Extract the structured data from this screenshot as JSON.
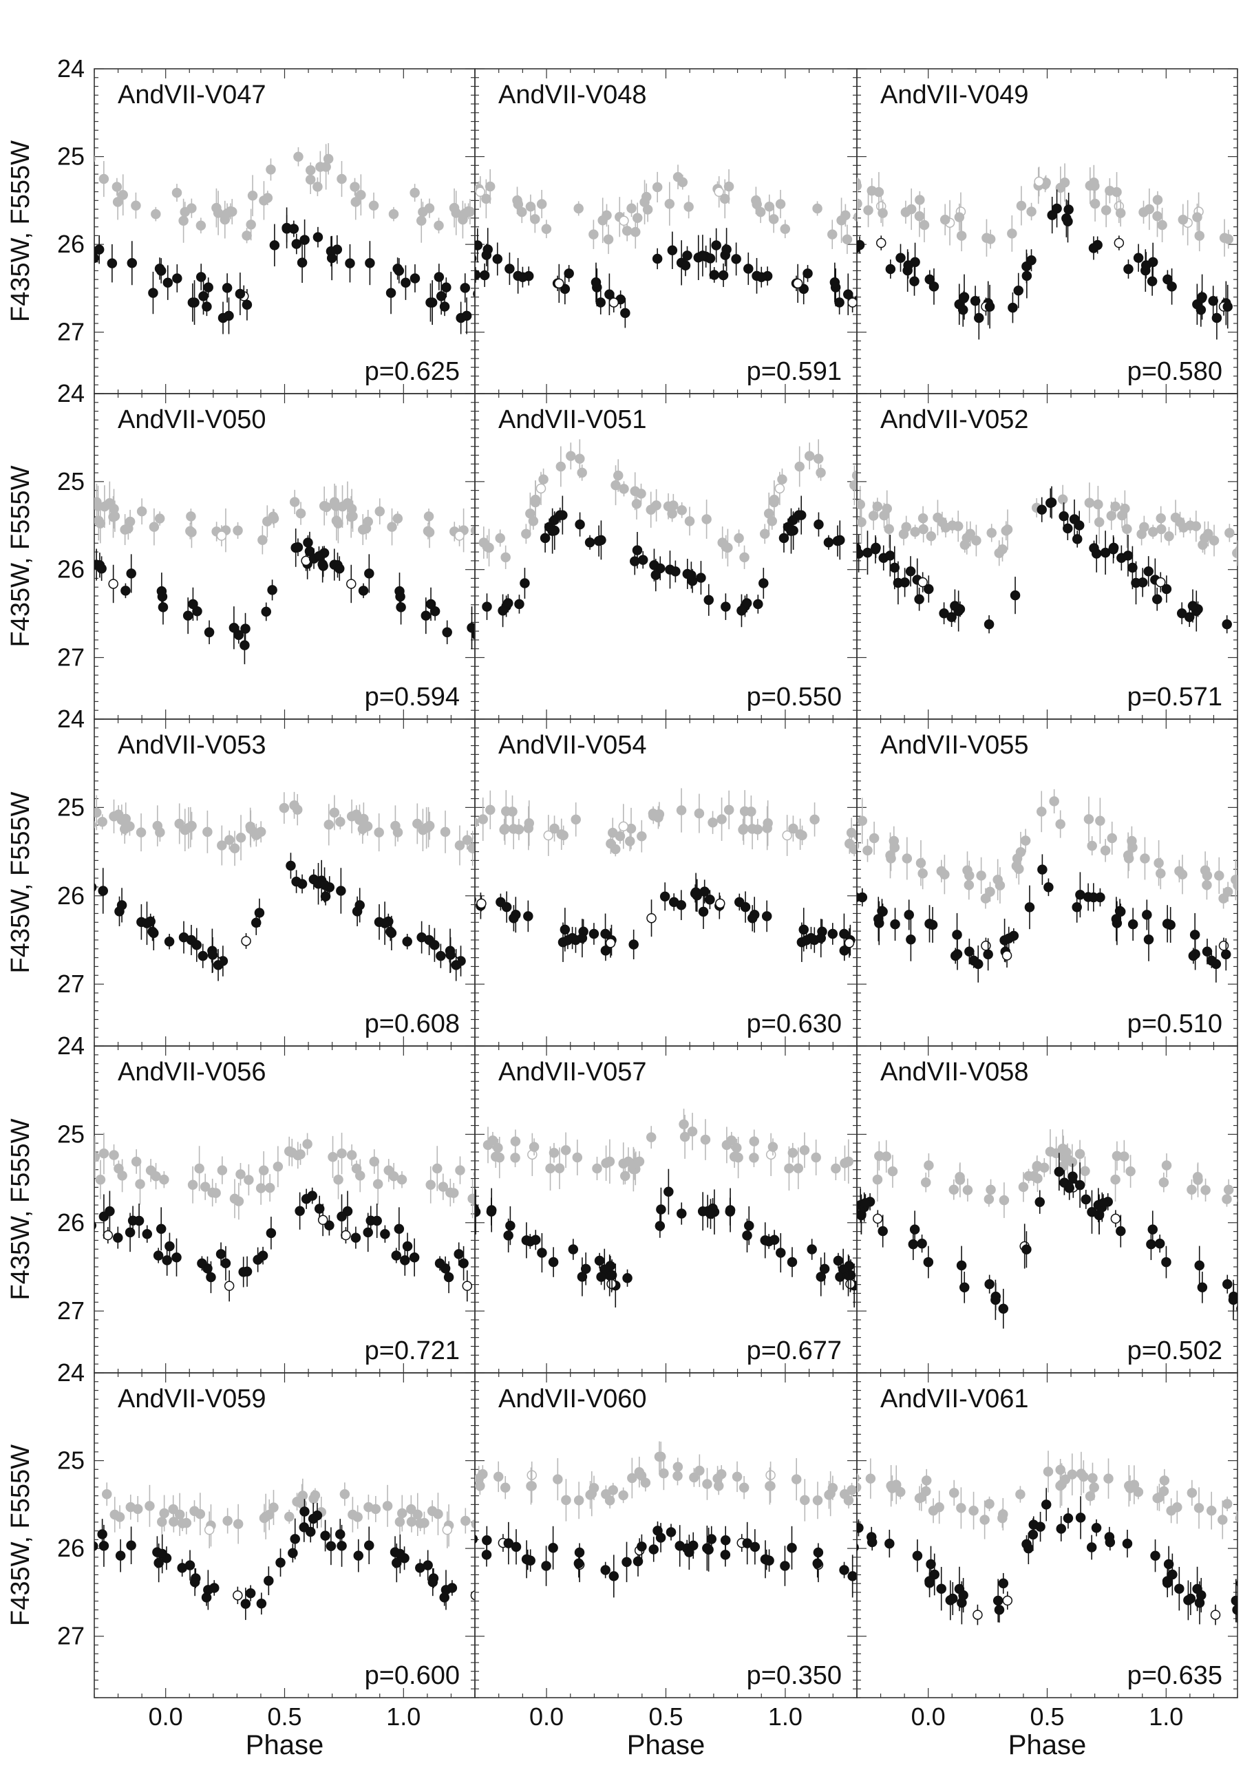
{
  "figure": {
    "ylabel": "F435W, F555W",
    "xlabel": "Phase",
    "xlim": [
      -0.3,
      1.3
    ],
    "ylim": [
      27.7,
      24.0
    ],
    "yticks": [
      "24",
      "25",
      "26",
      "27"
    ],
    "xticks": [
      "0.0",
      "0.5",
      "1.0"
    ],
    "colors": {
      "primary": "#111111",
      "secondary": "#b8b8b8",
      "axes": "#333333"
    }
  },
  "chart_data": [
    {
      "type": "scatter",
      "title": "AndVII-V047",
      "period": "p=0.625",
      "mean_primary": 26.35,
      "amp_primary": 0.75,
      "mean_secondary": 25.42,
      "amp_secondary": 0.75,
      "phase_max": 0.5,
      "phase_shift_secondary": 0.1,
      "scatter": 0.2
    },
    {
      "type": "scatter",
      "title": "AndVII-V048",
      "period": "p=0.591",
      "mean_primary": 26.35,
      "amp_primary": 0.7,
      "mean_secondary": 25.6,
      "amp_secondary": 0.5,
      "phase_max": 0.5,
      "phase_shift_secondary": -0.33,
      "scatter": 0.18
    },
    {
      "type": "scatter",
      "title": "AndVII-V049",
      "period": "p=0.580",
      "mean_primary": 26.25,
      "amp_primary": 1.3,
      "mean_secondary": 25.6,
      "amp_secondary": 0.6,
      "phase_max": 0.5,
      "phase_shift_secondary": -0.45,
      "scatter": 0.15
    },
    {
      "type": "scatter",
      "title": "AndVII-V050",
      "period": "p=0.594",
      "mean_primary": 26.3,
      "amp_primary": 1.1,
      "mean_secondary": 25.45,
      "amp_secondary": 0.3,
      "phase_max": 0.55,
      "phase_shift_secondary": 0.12,
      "scatter": 0.15
    },
    {
      "type": "scatter",
      "title": "AndVII-V051",
      "period": "p=0.550",
      "mean_primary": 25.95,
      "amp_primary": 1.1,
      "mean_secondary": 25.25,
      "amp_secondary": 1.1,
      "phase_max": 0.05,
      "phase_shift_secondary": -0.08,
      "scatter": 0.12
    },
    {
      "type": "scatter",
      "title": "AndVII-V052",
      "period": "p=0.571",
      "mean_primary": 26.05,
      "amp_primary": 1.6,
      "mean_secondary": 25.45,
      "amp_secondary": 0.5,
      "phase_max": 0.48,
      "phase_shift_secondary": 0.2,
      "scatter": 0.15
    },
    {
      "type": "scatter",
      "title": "AndVII-V053",
      "period": "p=0.608",
      "mean_primary": 26.25,
      "amp_primary": 1.2,
      "mean_secondary": 25.2,
      "amp_secondary": 0.4,
      "phase_max": 0.48,
      "phase_shift_secondary": 0.16,
      "scatter": 0.1
    },
    {
      "type": "scatter",
      "title": "AndVII-V054",
      "period": "p=0.630",
      "mean_primary": 26.3,
      "amp_primary": 0.7,
      "mean_secondary": 25.2,
      "amp_secondary": 0.3,
      "phase_max": 0.52,
      "phase_shift_secondary": 0.2,
      "scatter": 0.15
    },
    {
      "type": "scatter",
      "title": "AndVII-V055",
      "period": "p=0.510",
      "mean_primary": 26.3,
      "amp_primary": 0.9,
      "mean_secondary": 25.5,
      "amp_secondary": 0.9,
      "phase_max": 0.48,
      "phase_shift_secondary": 0.05,
      "scatter": 0.18
    },
    {
      "type": "scatter",
      "title": "AndVII-V056",
      "period": "p=0.721",
      "mean_primary": 26.2,
      "amp_primary": 0.9,
      "mean_secondary": 25.45,
      "amp_secondary": 0.4,
      "phase_max": 0.55,
      "phase_shift_secondary": -0.45,
      "scatter": 0.18
    },
    {
      "type": "scatter",
      "title": "AndVII-V057",
      "period": "p=0.677",
      "mean_primary": 26.2,
      "amp_primary": 1.0,
      "mean_secondary": 25.2,
      "amp_secondary": 0.5,
      "phase_max": 0.52,
      "phase_shift_secondary": 0.1,
      "scatter": 0.15
    },
    {
      "type": "scatter",
      "title": "AndVII-V058",
      "period": "p=0.502",
      "mean_primary": 26.2,
      "amp_primary": 1.5,
      "mean_secondary": 25.45,
      "amp_secondary": 0.5,
      "phase_max": 0.52,
      "phase_shift_secondary": -0.15,
      "scatter": 0.15
    },
    {
      "type": "scatter",
      "title": "AndVII-V059",
      "period": "p=0.600",
      "mean_primary": 26.2,
      "amp_primary": 1.0,
      "mean_secondary": 25.6,
      "amp_secondary": 0.3,
      "phase_max": 0.58,
      "phase_shift_secondary": -0.55,
      "scatter": 0.15
    },
    {
      "type": "scatter",
      "title": "AndVII-V060",
      "period": "p=0.350",
      "mean_primary": 26.05,
      "amp_primary": 0.35,
      "mean_secondary": 25.25,
      "amp_secondary": 0.4,
      "phase_max": 0.47,
      "phase_shift_secondary": -0.2,
      "scatter": 0.12
    },
    {
      "type": "scatter",
      "title": "AndVII-V061",
      "period": "p=0.635",
      "mean_primary": 26.15,
      "amp_primary": 1.1,
      "mean_secondary": 25.35,
      "amp_secondary": 0.4,
      "phase_max": 0.47,
      "phase_shift_secondary": -0.45,
      "scatter": 0.18
    }
  ]
}
